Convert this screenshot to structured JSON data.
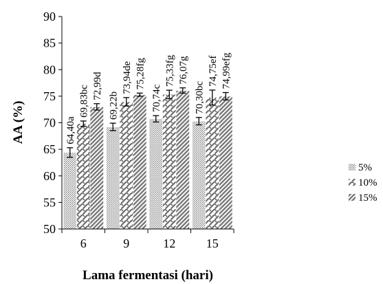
{
  "chart_data": {
    "type": "bar",
    "title": "",
    "xlabel": "Lama fermentasi (hari)",
    "ylabel": "AA (%)",
    "ylim": [
      50,
      90
    ],
    "yticks": [
      50,
      55,
      60,
      65,
      70,
      75,
      80,
      85,
      90
    ],
    "grid": false,
    "legend_position": "right",
    "categories": [
      "6",
      "9",
      "12",
      "15"
    ],
    "series": [
      {
        "name": "5%",
        "pattern": "dots",
        "values": [
          64.4,
          69.22,
          70.74,
          70.3
        ],
        "errors": [
          0.9,
          0.7,
          0.6,
          0.7
        ],
        "labels": [
          "64,40a",
          "69,22b",
          "70,74c",
          "70,30bc"
        ]
      },
      {
        "name": "10%",
        "pattern": "zigzag",
        "values": [
          69.83,
          73.94,
          75.33,
          74.75
        ],
        "errors": [
          0.5,
          0.8,
          0.8,
          1.4
        ],
        "labels": [
          "69,83bc",
          "73,94de",
          "75,33fg",
          "74,75ef"
        ]
      },
      {
        "name": "15%",
        "pattern": "diagonal",
        "values": [
          72.99,
          75.28,
          76.07,
          74.99
        ],
        "errors": [
          0.6,
          0.3,
          0.5,
          0.7
        ],
        "labels": [
          "72,99d",
          "75,28fg",
          "76,07g",
          "74,99efg"
        ]
      }
    ],
    "colors": {
      "bar_stroke": "#6e6e6e",
      "pattern": "#7a7a7a",
      "axis": "#000000"
    }
  }
}
